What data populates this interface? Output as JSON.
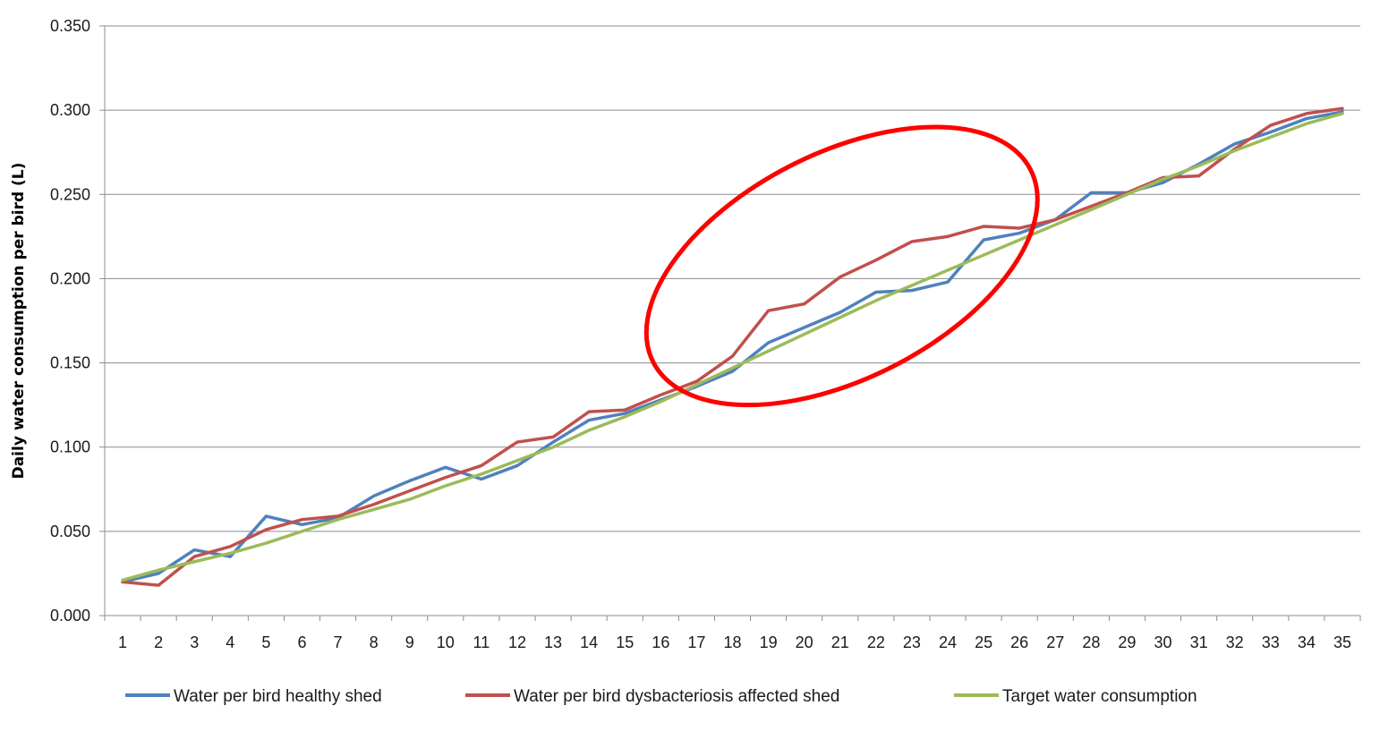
{
  "chart_data": {
    "type": "line",
    "title": "",
    "xlabel": "",
    "ylabel": "Daily water consumption per bird (L)",
    "x": [
      1,
      2,
      3,
      4,
      5,
      6,
      7,
      8,
      9,
      10,
      11,
      12,
      13,
      14,
      15,
      16,
      17,
      18,
      19,
      20,
      21,
      22,
      23,
      24,
      25,
      26,
      27,
      28,
      29,
      30,
      31,
      32,
      33,
      34,
      35
    ],
    "ylim": [
      0,
      0.35
    ],
    "yticks": [
      "0.000",
      "0.050",
      "0.100",
      "0.150",
      "0.200",
      "0.250",
      "0.300",
      "0.350"
    ],
    "grid": true,
    "legend_position": "bottom",
    "series": [
      {
        "name": "Water per bird healthy shed",
        "color": "#4f81bd",
        "values": [
          0.02,
          0.025,
          0.039,
          0.035,
          0.059,
          0.054,
          0.058,
          0.071,
          0.08,
          0.088,
          0.081,
          0.089,
          0.103,
          0.116,
          0.12,
          0.128,
          0.136,
          0.145,
          0.162,
          0.171,
          0.18,
          0.192,
          0.193,
          0.198,
          0.223,
          0.227,
          0.235,
          0.251,
          0.251,
          0.257,
          0.268,
          0.28,
          0.287,
          0.295,
          0.299
        ]
      },
      {
        "name": "Water per bird dysbacteriosis affected shed",
        "color": "#c0504d",
        "values": [
          0.02,
          0.018,
          0.035,
          0.041,
          0.051,
          0.057,
          0.059,
          0.066,
          0.074,
          0.082,
          0.089,
          0.103,
          0.106,
          0.121,
          0.122,
          0.131,
          0.139,
          0.154,
          0.181,
          0.185,
          0.201,
          0.211,
          0.222,
          0.225,
          0.231,
          0.23,
          0.235,
          0.243,
          0.251,
          0.26,
          0.261,
          0.277,
          0.291,
          0.298,
          0.301
        ]
      },
      {
        "name": "Target water consumption",
        "color": "#9bbb59",
        "values": [
          0.021,
          0.027,
          0.032,
          0.037,
          0.043,
          0.05,
          0.057,
          0.063,
          0.069,
          0.077,
          0.084,
          0.092,
          0.1,
          0.11,
          0.118,
          0.127,
          0.137,
          0.147,
          0.157,
          0.167,
          0.177,
          0.187,
          0.196,
          0.205,
          0.214,
          0.223,
          0.232,
          0.241,
          0.25,
          0.259,
          0.267,
          0.276,
          0.284,
          0.292,
          0.298
        ]
      }
    ],
    "annotations": [
      {
        "type": "ellipse",
        "color": "#ff0000",
        "x_range": [
          15.6,
          26.5
        ],
        "y_range": [
          0.125,
          0.29
        ],
        "rotation_deg": -27
      }
    ]
  }
}
